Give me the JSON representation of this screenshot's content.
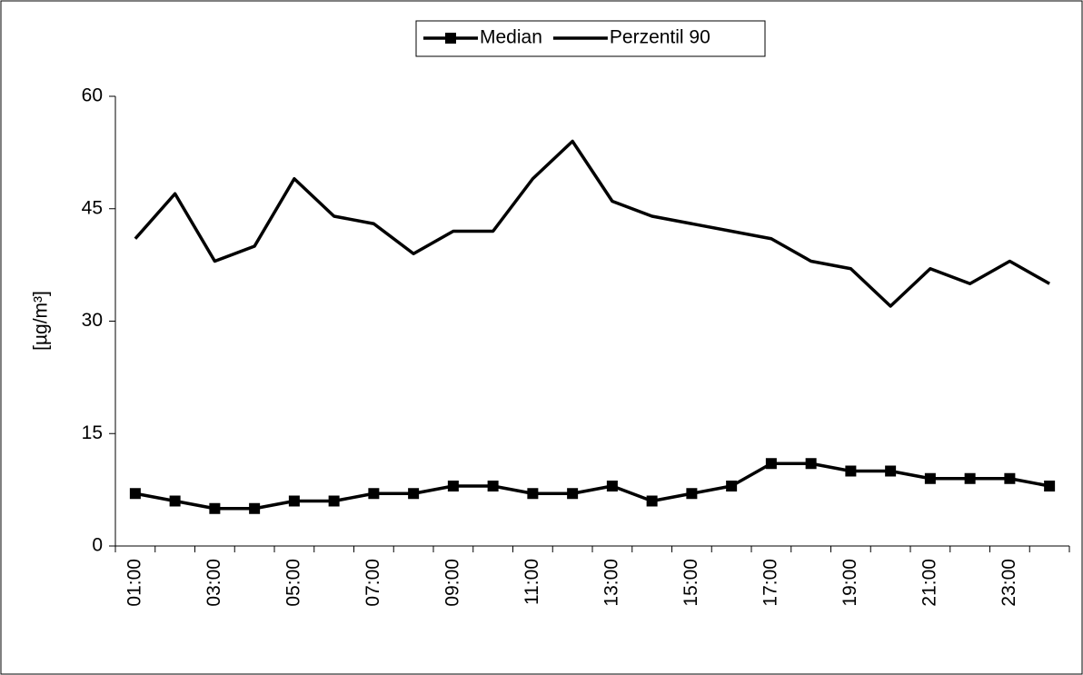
{
  "chart_data": {
    "type": "line",
    "y_label": "[µg/m³]",
    "categories": [
      "01:00",
      null,
      "03:00",
      null,
      "05:00",
      null,
      "07:00",
      null,
      "09:00",
      null,
      "11:00",
      null,
      "13:00",
      null,
      "15:00",
      null,
      "17:00",
      null,
      "19:00",
      null,
      "21:00",
      null,
      "23:00",
      null
    ],
    "series": [
      {
        "name": "Median",
        "color": "#000000",
        "marker": "square",
        "values": [
          7,
          6,
          5,
          5,
          6,
          6,
          7,
          7,
          8,
          8,
          7,
          7,
          8,
          6,
          7,
          8,
          11,
          11,
          10,
          10,
          9,
          9,
          9,
          8
        ]
      },
      {
        "name": "Perzentil 90",
        "color": "#000000",
        "marker": "none",
        "values": [
          41,
          47,
          38,
          40,
          49,
          44,
          43,
          39,
          42,
          42,
          49,
          54,
          46,
          44,
          43,
          42,
          41,
          38,
          37,
          32,
          37,
          35,
          38,
          35
        ]
      }
    ],
    "ylim": [
      0,
      60
    ],
    "yticks": [
      0,
      15,
      30,
      45,
      60
    ],
    "grid": false,
    "legend": "top"
  }
}
